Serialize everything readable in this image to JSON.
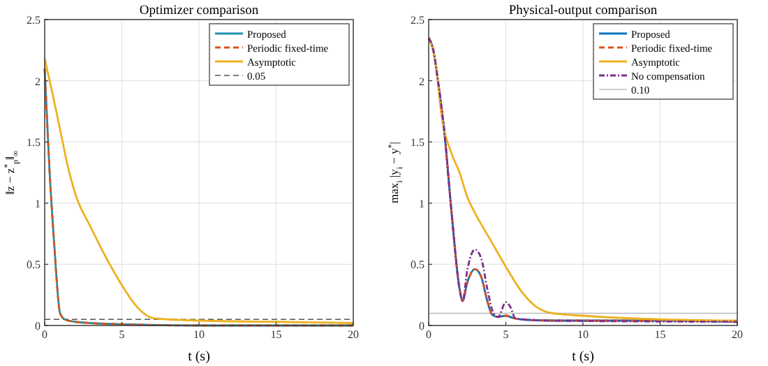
{
  "chart_data": [
    {
      "type": "line",
      "title": "Optimizer comparison",
      "xlabel": "t (s)",
      "ylabel": "‖z − z$^{*}$$_{p}$‖$_{∞}$",
      "xlim": [
        0,
        20
      ],
      "ylim": [
        0,
        2.5
      ],
      "xticks": [
        0,
        5,
        10,
        15,
        20
      ],
      "yticks": [
        0,
        0.5,
        1,
        1.5,
        2,
        2.5
      ],
      "grid": true,
      "legend": "top right",
      "series": [
        {
          "name": "Proposed",
          "color": "#1f8fb0",
          "line_style": "solid",
          "x": [
            0,
            0.3,
            0.6,
            1,
            1.3,
            2,
            3,
            5,
            10,
            20
          ],
          "values": [
            2.1,
            1.3,
            0.7,
            0.1,
            0.05,
            0.03,
            0.02,
            0.01,
            0,
            0
          ]
        },
        {
          "name": "Periodic fixed-time",
          "color": "#d95319",
          "line_style": "dashed",
          "x": [
            0,
            0.3,
            0.6,
            1,
            1.3,
            2,
            3,
            5,
            10,
            20
          ],
          "values": [
            2.1,
            1.3,
            0.7,
            0.1,
            0.05,
            0.03,
            0.02,
            0.01,
            0,
            0
          ]
        },
        {
          "name": "Asymptotic",
          "color": "#edb120",
          "line_style": "solid",
          "x": [
            0,
            0.5,
            1,
            1.5,
            2,
            3,
            4,
            5,
            6,
            7,
            8,
            10,
            15,
            20
          ],
          "values": [
            2.18,
            1.9,
            1.6,
            1.3,
            1.07,
            0.8,
            0.55,
            0.33,
            0.15,
            0.06,
            0.05,
            0.04,
            0.03,
            0.02
          ]
        }
      ],
      "ref_lines": [
        {
          "axis": "y",
          "value": 0.05,
          "label": "0.05",
          "color": "#555555",
          "line_style": "dashed"
        }
      ]
    },
    {
      "type": "line",
      "title": "Physical-output comparison",
      "xlabel": "t (s)",
      "ylabel": "max$_{i}$ |y$_{i}$ − y$^{*}$|",
      "xlim": [
        0,
        20
      ],
      "ylim": [
        0,
        2.5
      ],
      "xticks": [
        0,
        5,
        10,
        15,
        20
      ],
      "yticks": [
        0,
        0.5,
        1,
        1.5,
        2,
        2.5
      ],
      "grid": true,
      "legend": "top right",
      "series": [
        {
          "name": "Proposed",
          "color": "#0072bd",
          "line_style": "solid",
          "x": [
            0,
            0.3,
            0.6,
            1,
            1.5,
            2,
            2.2,
            2.5,
            3,
            3.4,
            3.8,
            4.1,
            4.5,
            5,
            5.5,
            6,
            8,
            10,
            15,
            20
          ],
          "values": [
            2.35,
            2.25,
            2.0,
            1.6,
            0.9,
            0.3,
            0.2,
            0.35,
            0.46,
            0.4,
            0.2,
            0.09,
            0.07,
            0.08,
            0.06,
            0.05,
            0.04,
            0.04,
            0.04,
            0.03
          ]
        },
        {
          "name": "Periodic fixed-time",
          "color": "#d95319",
          "line_style": "dashed",
          "x": [
            0,
            0.3,
            0.6,
            1,
            1.5,
            2,
            2.2,
            2.5,
            3,
            3.4,
            3.8,
            4.1,
            4.5,
            5,
            5.5,
            6,
            8,
            10,
            15,
            20
          ],
          "values": [
            2.35,
            2.25,
            2.0,
            1.6,
            0.9,
            0.3,
            0.2,
            0.35,
            0.46,
            0.4,
            0.2,
            0.09,
            0.07,
            0.08,
            0.06,
            0.05,
            0.04,
            0.04,
            0.04,
            0.03
          ]
        },
        {
          "name": "Asymptotic",
          "color": "#edb120",
          "line_style": "solid",
          "x": [
            0,
            0.5,
            0.8,
            1.5,
            2,
            2.5,
            3,
            4,
            5,
            6,
            7,
            8,
            10,
            15,
            20
          ],
          "values": [
            2.35,
            2.1,
            1.75,
            1.4,
            1.25,
            1.05,
            0.92,
            0.7,
            0.48,
            0.28,
            0.15,
            0.1,
            0.08,
            0.05,
            0.04
          ]
        },
        {
          "name": "No compensation",
          "color": "#7e2f8e",
          "line_style": "dashdot",
          "x": [
            0,
            0.3,
            0.6,
            1,
            1.5,
            2,
            2.2,
            2.5,
            3,
            3.4,
            3.8,
            4.2,
            4.5,
            5,
            5.3,
            5.6,
            6,
            8,
            20
          ],
          "values": [
            2.35,
            2.25,
            2.0,
            1.6,
            0.9,
            0.3,
            0.2,
            0.45,
            0.62,
            0.55,
            0.3,
            0.1,
            0.07,
            0.19,
            0.15,
            0.06,
            0.05,
            0.04,
            0.03
          ]
        }
      ],
      "ref_lines": [
        {
          "axis": "y",
          "value": 0.1,
          "label": "0.10",
          "color": "#bbbbbb",
          "line_style": "solid"
        }
      ]
    }
  ]
}
